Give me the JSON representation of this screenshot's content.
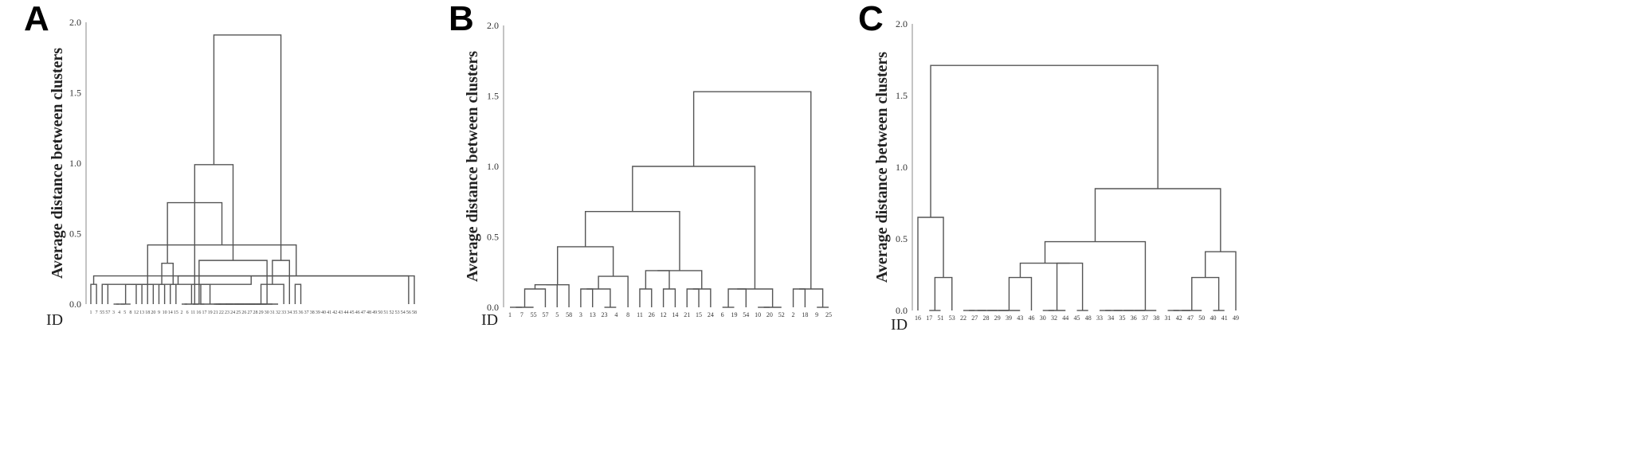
{
  "chart_data": [
    {
      "type": "dendrogram",
      "panel_label": "A",
      "ylabel": "Average distance between clusters",
      "xlabel": "ID",
      "ylim": [
        0,
        2.0
      ],
      "yticks": [
        "0.0",
        "0.5",
        "1.0",
        "1.5",
        "2.0"
      ],
      "leaf_label_size": "small",
      "leaves": [
        "1",
        "7",
        "55",
        "57",
        "3",
        "4",
        "5",
        "8",
        "12",
        "13",
        "18",
        "20",
        "9",
        "10",
        "14",
        "15",
        "2",
        "6",
        "11",
        "16",
        "17",
        "19",
        "21",
        "22",
        "23",
        "24",
        "25",
        "26",
        "27",
        "28",
        "29",
        "30",
        "31",
        "32",
        "33",
        "34",
        "35",
        "36",
        "37",
        "38",
        "39",
        "40",
        "41",
        "42",
        "43",
        "44",
        "45",
        "46",
        "47",
        "48",
        "49",
        "50",
        "51",
        "52",
        "53",
        "54",
        "56",
        "58"
      ],
      "merges": [
        [
          0,
          1,
          0.14
        ],
        [
          56,
          58,
          0.2
        ],
        [
          2,
          3,
          0.14
        ],
        [
          60,
          59,
          0.14
        ],
        [
          57,
          61,
          0.2
        ],
        [
          4,
          5,
          0.0
        ],
        [
          63,
          6,
          0.0
        ],
        [
          64,
          7,
          0.0
        ],
        [
          65,
          8,
          0.14
        ],
        [
          66,
          9,
          0.14
        ],
        [
          67,
          10,
          0.14
        ],
        [
          68,
          11,
          0.14
        ],
        [
          62,
          69,
          0.42
        ],
        [
          12,
          13,
          0.14
        ],
        [
          14,
          15,
          0.14
        ],
        [
          71,
          72,
          0.29
        ],
        [
          70,
          73,
          0.72
        ],
        [
          16,
          17,
          0.0
        ],
        [
          74,
          18,
          0.0
        ],
        [
          75,
          19,
          0.0
        ],
        [
          76,
          20,
          0.0
        ],
        [
          77,
          21,
          0.14
        ],
        [
          22,
          23,
          0.0
        ],
        [
          79,
          24,
          0.0
        ],
        [
          80,
          25,
          0.0
        ],
        [
          81,
          26,
          0.0
        ],
        [
          82,
          27,
          0.0
        ],
        [
          83,
          28,
          0.0
        ],
        [
          84,
          29,
          0.0
        ],
        [
          85,
          30,
          0.0
        ],
        [
          86,
          31,
          0.0
        ],
        [
          87,
          32,
          0.0
        ],
        [
          88,
          33,
          0.0
        ],
        [
          89,
          34,
          0.14
        ],
        [
          78,
          90,
          0.31
        ],
        [
          91,
          35,
          0.31
        ],
        [
          74,
          92,
          0.99
        ],
        [
          36,
          37,
          0.14
        ],
        [
          93,
          94,
          1.91
        ]
      ]
    },
    {
      "type": "dendrogram",
      "panel_label": "B",
      "ylabel": "Average distance between clusters",
      "xlabel": "ID",
      "ylim": [
        0,
        2.0
      ],
      "yticks": [
        "0.0",
        "0.5",
        "1.0",
        "1.5",
        "2.0"
      ],
      "leaf_label_size": "normal",
      "leaves": [
        "1",
        "7",
        "55",
        "57",
        "5",
        "58",
        "3",
        "13",
        "23",
        "4",
        "8",
        "11",
        "26",
        "12",
        "14",
        "21",
        "15",
        "24",
        "6",
        "19",
        "54",
        "10",
        "20",
        "52",
        "2",
        "18",
        "9",
        "25"
      ],
      "merges": [
        [
          0,
          1,
          0.0
        ],
        [
          28,
          2,
          0.0
        ],
        [
          29,
          3,
          0.13
        ],
        [
          30,
          4,
          0.16
        ],
        [
          31,
          5,
          0.16
        ],
        [
          6,
          7,
          0.13
        ],
        [
          8,
          9,
          0.0
        ],
        [
          33,
          34,
          0.13
        ],
        [
          10,
          35,
          0.22
        ],
        [
          32,
          36,
          0.43
        ],
        [
          11,
          12,
          0.13
        ],
        [
          13,
          14,
          0.13
        ],
        [
          15,
          16,
          0.13
        ],
        [
          17,
          40,
          0.13
        ],
        [
          38,
          39,
          0.26
        ],
        [
          41,
          42,
          0.26
        ],
        [
          37,
          43,
          0.68
        ],
        [
          18,
          19,
          0.0
        ],
        [
          45,
          20,
          0.13
        ],
        [
          21,
          22,
          0.0
        ],
        [
          47,
          23,
          0.0
        ],
        [
          46,
          48,
          0.13
        ],
        [
          44,
          49,
          1.0
        ],
        [
          24,
          25,
          0.13
        ],
        [
          26,
          27,
          0.0
        ],
        [
          51,
          52,
          0.13
        ],
        [
          50,
          53,
          1.53
        ]
      ]
    },
    {
      "type": "dendrogram",
      "panel_label": "C",
      "ylabel": "Average distance between clusters",
      "xlabel": "ID",
      "ylim": [
        0,
        2.0
      ],
      "yticks": [
        "0.0",
        "0.5",
        "1.0",
        "1.5",
        "2.0"
      ],
      "leaf_label_size": "normal",
      "leaves": [
        "16",
        "17",
        "51",
        "53",
        "22",
        "27",
        "28",
        "29",
        "39",
        "43",
        "46",
        "30",
        "32",
        "44",
        "45",
        "48",
        "33",
        "34",
        "35",
        "36",
        "37",
        "38",
        "31",
        "42",
        "47",
        "50",
        "40",
        "41",
        "49"
      ],
      "merges": [
        [
          1,
          2,
          0.0
        ],
        [
          3,
          29,
          0.23
        ],
        [
          0,
          30,
          0.65
        ],
        [
          4,
          5,
          0.0
        ],
        [
          32,
          6,
          0.0
        ],
        [
          33,
          7,
          0.0
        ],
        [
          34,
          8,
          0.0
        ],
        [
          35,
          9,
          0.0
        ],
        [
          36,
          10,
          0.23
        ],
        [
          11,
          12,
          0.0
        ],
        [
          38,
          13,
          0.0
        ],
        [
          14,
          15,
          0.0
        ],
        [
          39,
          40,
          0.33
        ],
        [
          37,
          41,
          0.33
        ],
        [
          16,
          17,
          0.0
        ],
        [
          43,
          18,
          0.0
        ],
        [
          44,
          19,
          0.0
        ],
        [
          45,
          20,
          0.0
        ],
        [
          46,
          21,
          0.0
        ],
        [
          42,
          47,
          0.48
        ],
        [
          22,
          23,
          0.0
        ],
        [
          49,
          24,
          0.0
        ],
        [
          50,
          25,
          0.0
        ],
        [
          26,
          27,
          0.0
        ],
        [
          51,
          52,
          0.23
        ],
        [
          53,
          28,
          0.41
        ],
        [
          48,
          54,
          0.85
        ],
        [
          31,
          55,
          1.71
        ]
      ]
    }
  ]
}
